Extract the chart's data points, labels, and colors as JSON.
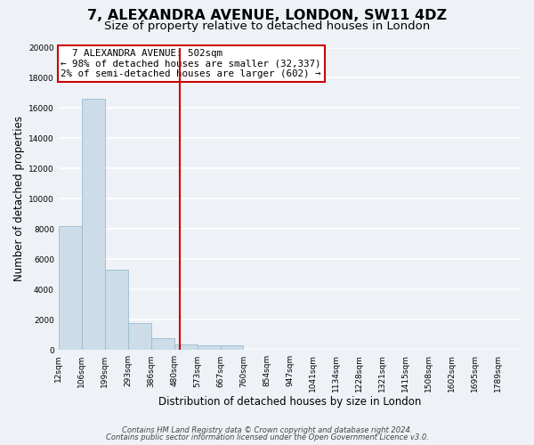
{
  "title": "7, ALEXANDRA AVENUE, LONDON, SW11 4DZ",
  "subtitle": "Size of property relative to detached houses in London",
  "xlabel": "Distribution of detached houses by size in London",
  "ylabel": "Number of detached properties",
  "footer_line1": "Contains HM Land Registry data © Crown copyright and database right 2024.",
  "footer_line2": "Contains public sector information licensed under the Open Government Licence v3.0.",
  "annotation_line1": "7 ALEXANDRA AVENUE: 502sqm",
  "annotation_line2": "← 98% of detached houses are smaller (32,337)",
  "annotation_line3": "2% of semi-detached houses are larger (602) →",
  "bar_edges": [
    12,
    106,
    199,
    293,
    386,
    480,
    573,
    667,
    760,
    854,
    947,
    1041,
    1134,
    1228,
    1321,
    1415,
    1508,
    1602,
    1695,
    1789,
    1882
  ],
  "bar_heights": [
    8200,
    16600,
    5300,
    1800,
    800,
    350,
    300,
    300,
    0,
    0,
    0,
    0,
    0,
    0,
    0,
    0,
    0,
    0,
    0,
    0
  ],
  "bar_color": "#ccdce8",
  "bar_edge_color": "#9bbbd0",
  "vline_x": 502,
  "vline_color": "#cc0000",
  "box_color": "#cc0000",
  "ylim": [
    0,
    20000
  ],
  "yticks": [
    0,
    2000,
    4000,
    6000,
    8000,
    10000,
    12000,
    14000,
    16000,
    18000,
    20000
  ],
  "bg_color": "#eef2f7",
  "grid_color": "#ffffff",
  "title_fontsize": 11.5,
  "subtitle_fontsize": 9.5,
  "tick_label_fontsize": 6.5,
  "axis_label_fontsize": 8.5,
  "annotation_fontsize": 7.8,
  "footer_fontsize": 6.0
}
